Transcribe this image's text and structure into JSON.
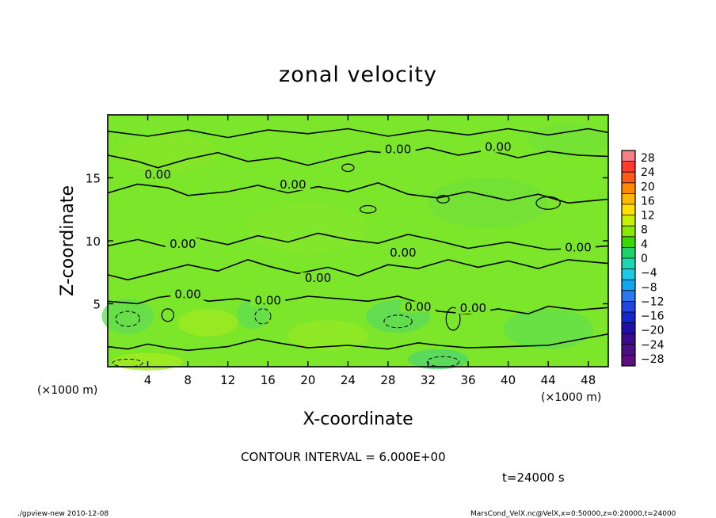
{
  "chart_data": {
    "type": "heatmap",
    "title": "zonal velocity",
    "xlabel": "X-coordinate",
    "ylabel": "Z-coordinate",
    "x_unit": "(×1000 m)",
    "y_unit": "(×1000 m)",
    "xlim": [
      0,
      50
    ],
    "ylim": [
      0,
      20
    ],
    "x_ticks": [
      "4",
      "8",
      "12",
      "16",
      "20",
      "24",
      "28",
      "32",
      "36",
      "40",
      "44",
      "48"
    ],
    "x_tick_values": [
      4,
      8,
      12,
      16,
      20,
      24,
      28,
      32,
      36,
      40,
      44,
      48
    ],
    "y_ticks": [
      "5",
      "10",
      "15"
    ],
    "y_tick_values": [
      5,
      10,
      15
    ],
    "colorbar": {
      "ticks": [
        "28",
        "24",
        "20",
        "16",
        "12",
        "8",
        "4",
        "0",
        "-4",
        "-8",
        "-12",
        "-16",
        "-20",
        "-24",
        "-28"
      ],
      "range": [
        -30,
        30
      ],
      "colors": [
        "#f47f86",
        "#ff3b2b",
        "#ff5a1a",
        "#ff8a00",
        "#ffb800",
        "#ffe000",
        "#c8f000",
        "#8be800",
        "#3ad800",
        "#1bd36a",
        "#1fd6b3",
        "#1ccae6",
        "#10a6f0",
        "#2a78ee",
        "#2046e0",
        "#1626c8",
        "#2010a8",
        "#3a0d8c",
        "#4a1080",
        "#5a1078"
      ]
    },
    "contour_interval": "CONTOUR INTERVAL = 6.000E+00",
    "contour_labels": [
      {
        "text": "0.00",
        "x": 5,
        "z": 15
      },
      {
        "text": "0.00",
        "x": 18.5,
        "z": 14.2
      },
      {
        "text": "0.00",
        "x": 29,
        "z": 17
      },
      {
        "text": "0.00",
        "x": 39,
        "z": 17.2
      },
      {
        "text": "0.00",
        "x": 7.5,
        "z": 9.5
      },
      {
        "text": "0.00",
        "x": 29.5,
        "z": 8.8
      },
      {
        "text": "0.00",
        "x": 47,
        "z": 9.2
      },
      {
        "text": "0.00",
        "x": 21,
        "z": 6.8
      },
      {
        "text": "0.00",
        "x": 8,
        "z": 5.5
      },
      {
        "text": "0.00",
        "x": 16,
        "z": 5
      },
      {
        "text": "0.00",
        "x": 31,
        "z": 4.5
      },
      {
        "text": "0.00",
        "x": 36.5,
        "z": 4.4
      }
    ]
  },
  "time_label": "t=24000 s",
  "footer_left": "./gpview-new   2010-12-08",
  "footer_right": "MarsCond_VelX.nc@VelX,x=0:50000,z=0:20000,t=24000"
}
